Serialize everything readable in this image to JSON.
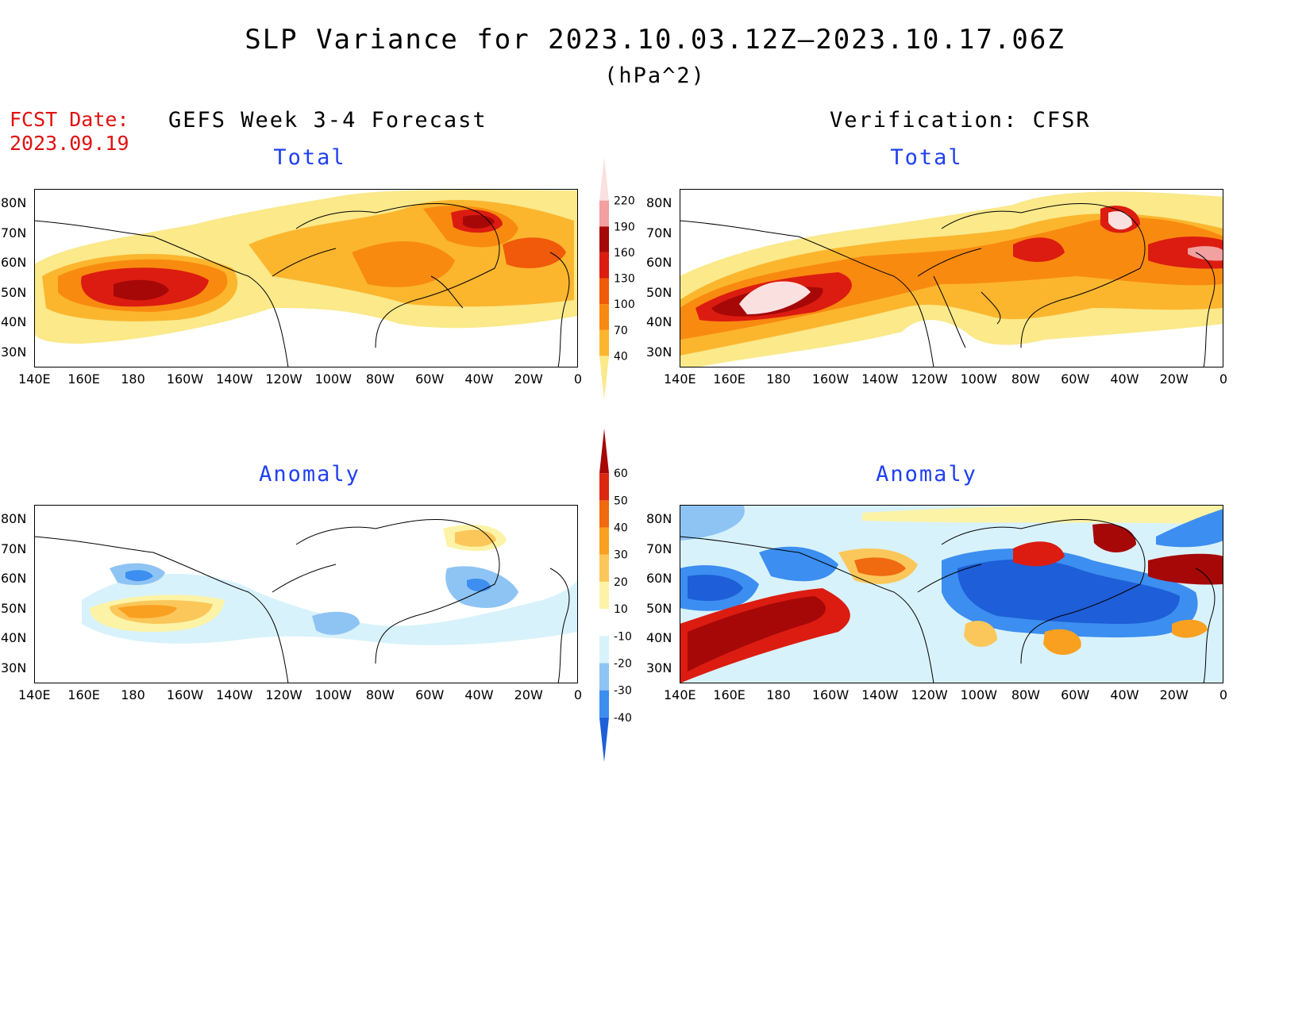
{
  "title": "SLP Variance for 2023.10.03.12Z–2023.10.17.06Z",
  "units": "(hPa^2)",
  "fcst_date_label": "FCST Date:",
  "fcst_date": "2023.09.19",
  "columns": {
    "left": "GEFS Week 3-4 Forecast",
    "right": "Verification: CFSR"
  },
  "panels": {
    "total": "Total",
    "anomaly": "Anomaly"
  },
  "lat_labels": [
    "80N",
    "70N",
    "60N",
    "50N",
    "40N",
    "30N"
  ],
  "lon_labels": [
    "140E",
    "160E",
    "180",
    "160W",
    "140W",
    "120W",
    "100W",
    "80W",
    "60W",
    "40W",
    "20W",
    "0"
  ],
  "colorbar_total": {
    "levels": [
      "40",
      "70",
      "100",
      "130",
      "160",
      "190",
      "220"
    ],
    "colors": [
      "#fbe98a",
      "#fbb62e",
      "#f98a10",
      "#f05a0a",
      "#dc1c10",
      "#a60808",
      "#f2a0a0",
      "#fbe0e0"
    ]
  },
  "colorbar_anomaly": {
    "levels": [
      "-40",
      "-30",
      "-20",
      "-10",
      "10",
      "20",
      "30",
      "40",
      "50",
      "60"
    ],
    "colors": [
      "#1e5ed8",
      "#3c8ef0",
      "#8ec4f4",
      "#d8f2fb",
      "#ffffff",
      "#fdf3a6",
      "#fbc75a",
      "#f9a020",
      "#f06a10",
      "#dc2810",
      "#a60808"
    ]
  }
}
